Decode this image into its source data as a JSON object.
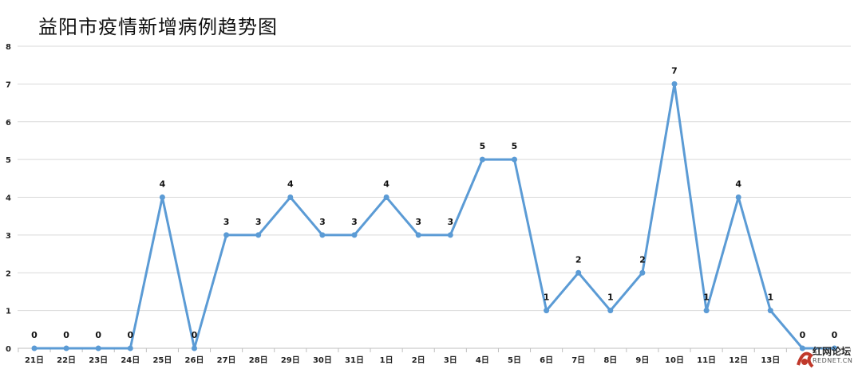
{
  "chart_data": {
    "type": "line",
    "title": "益阳市疫情新增病例趋势图",
    "categories": [
      "21日",
      "22日",
      "23日",
      "24日",
      "25日",
      "26日",
      "27日",
      "28日",
      "29日",
      "30日",
      "31日",
      "1日",
      "2日",
      "3日",
      "4日",
      "5日",
      "6日",
      "7日",
      "8日",
      "9日",
      "10日",
      "11日",
      "12日",
      "13日",
      "",
      ""
    ],
    "series": [
      {
        "values": [
          0,
          0,
          0,
          0,
          4,
          0,
          3,
          3,
          4,
          3,
          3,
          4,
          3,
          3,
          5,
          5,
          1,
          2,
          1,
          2,
          7,
          1,
          4,
          1,
          0,
          0
        ]
      }
    ],
    "ylim": [
      0,
      8
    ],
    "yticks": [
      "0",
      "1",
      "2",
      "3",
      "4",
      "5",
      "6",
      "7",
      "8"
    ],
    "grid": true,
    "legend": "none",
    "line_color": "#5b9bd5"
  },
  "watermark": {
    "text": "红网论坛",
    "sub": "REDNET.CN"
  }
}
